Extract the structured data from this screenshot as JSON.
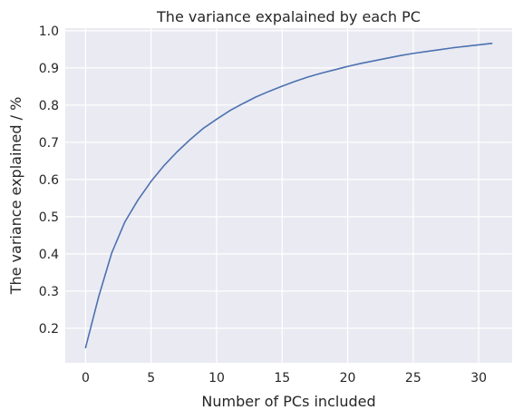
{
  "chart_data": {
    "type": "line",
    "title": "The variance expalained by each PC",
    "xlabel": "Number of PCs included",
    "ylabel": "The variance explained / %",
    "xlim": [
      -1.55,
      32.55
    ],
    "ylim": [
      0.107,
      1.007
    ],
    "xticks": [
      "0",
      "5",
      "10",
      "15",
      "20",
      "25",
      "30"
    ],
    "yticks": [
      "0.2",
      "0.3",
      "0.4",
      "0.5",
      "0.6",
      "0.7",
      "0.8",
      "0.9",
      "1.0"
    ],
    "grid": true,
    "colors": {
      "background": "#eaeaf2",
      "grid": "#ffffff",
      "line": "#4c72b0"
    },
    "series": [
      {
        "x": [
          0,
          1,
          2,
          3,
          4,
          5,
          6,
          7,
          8,
          9,
          10,
          11,
          12,
          13,
          14,
          15,
          16,
          17,
          18,
          19,
          20,
          21,
          22,
          23,
          24,
          25,
          26,
          27,
          28,
          29,
          30,
          31
        ],
        "values": [
          0.148,
          0.285,
          0.403,
          0.486,
          0.545,
          0.595,
          0.638,
          0.675,
          0.708,
          0.738,
          0.762,
          0.785,
          0.804,
          0.822,
          0.837,
          0.851,
          0.864,
          0.876,
          0.886,
          0.895,
          0.904,
          0.912,
          0.919,
          0.926,
          0.933,
          0.939,
          0.944,
          0.949,
          0.954,
          0.958,
          0.962,
          0.966
        ]
      }
    ]
  }
}
